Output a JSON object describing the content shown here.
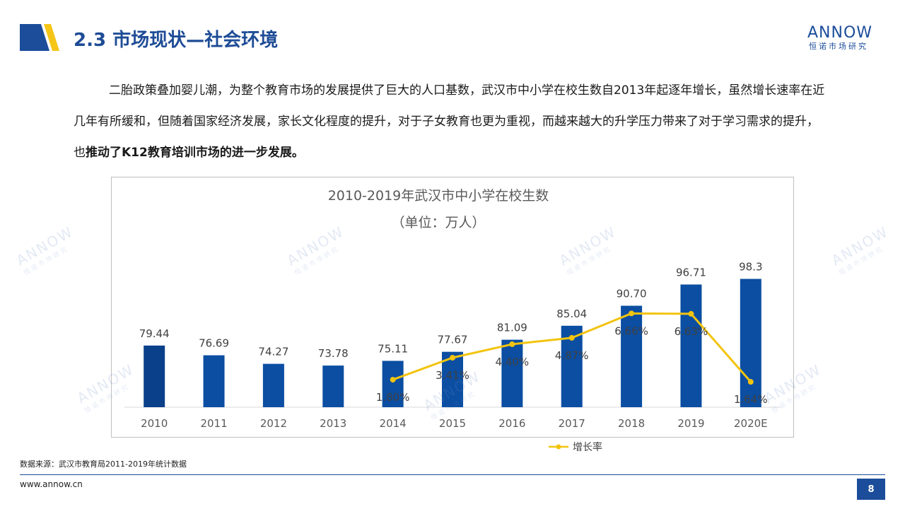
{
  "header": {
    "title": "2.3 市场现状—社会环境",
    "logo_text": "ANNOW",
    "logo_sub": "恒诺市场研究"
  },
  "paragraph": {
    "text_main": "二胎政策叠加婴儿潮，为整个教育市场的发展提供了巨大的人口基数，武汉市中小学在校生数自2013年起逐年增长，虽然增长速率在近几年有所缓和，但随着国家经济发展，家长文化程度的提升，对于子女教育也更为重视，而越来越大的升学压力带来了对于学习需求的提升，也",
    "text_bold": "推动了K12教育培训市场的进一步发展。"
  },
  "chart_data": {
    "type": "bar",
    "title": "2010-2019年武汉市中小学在校生数",
    "subtitle": "（单位：万人）",
    "categories": [
      "2010",
      "2011",
      "2012",
      "2013",
      "2014",
      "2015",
      "2016",
      "2017",
      "2018",
      "2019",
      "2020E"
    ],
    "series": [
      {
        "values": [
          79.44,
          76.69,
          74.27,
          73.78,
          75.11,
          77.67,
          81.09,
          85.04,
          90.7,
          96.71,
          98.3
        ],
        "labels": [
          "79.44",
          "76.69",
          "74.27",
          "73.78",
          "75.11",
          "77.67",
          "81.09",
          "85.04",
          "90.70",
          "96.71",
          "98.3"
        ],
        "color": "#0b4ea2",
        "first_bar_color": "#0a3f8a"
      },
      {
        "name": "增长率",
        "type": "line",
        "x": [
          "2014",
          "2015",
          "2016",
          "2017",
          "2018",
          "2019",
          "2020E"
        ],
        "values": [
          1.8,
          3.41,
          4.4,
          4.87,
          6.66,
          6.63,
          1.64
        ],
        "labels": [
          "1.80%",
          "3.41%",
          "4.40%",
          "4.87%",
          "6.66%",
          "6.63%",
          "1.64%"
        ],
        "color": "#f2c40f"
      }
    ],
    "legend": {
      "entries": [
        "增长率"
      ],
      "position": "bottom"
    },
    "grid": false
  },
  "footer": {
    "source": "数据来源：武汉市教育局2011-2019年统计数据",
    "website": "www.annow.cn",
    "page_number": "8"
  },
  "colors": {
    "brand": "#1c4d9a",
    "accent": "#f5c518"
  }
}
